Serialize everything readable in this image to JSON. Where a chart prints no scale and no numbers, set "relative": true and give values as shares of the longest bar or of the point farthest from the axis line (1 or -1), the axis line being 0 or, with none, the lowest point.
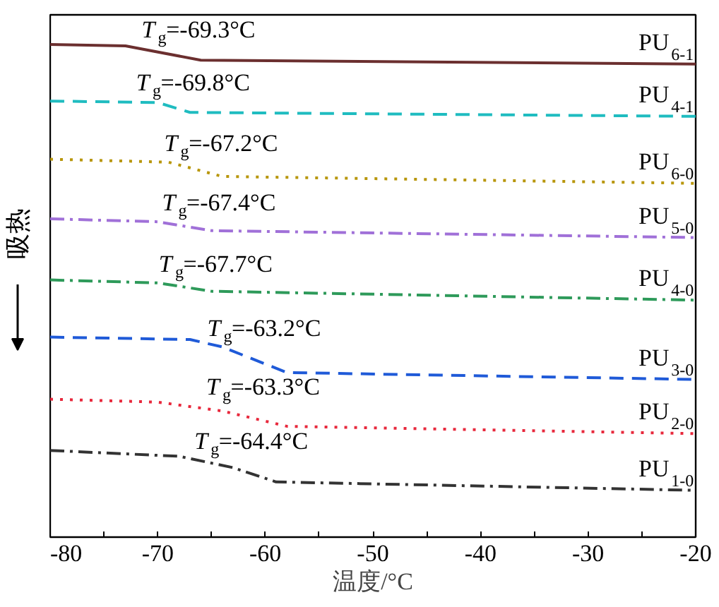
{
  "chart_data": {
    "type": "line",
    "relative": true,
    "xlabel": "温度/°C",
    "ylabel": "吸热",
    "legend": false,
    "grid": false,
    "xlim": [
      -80,
      -20
    ],
    "xticks": [
      -80,
      {
        "value": -75,
        "label": null
      },
      -70,
      {
        "value": -65,
        "label": null
      },
      -60,
      {
        "value": -55,
        "label": null
      },
      -50,
      {
        "value": -45,
        "label": null
      },
      -40,
      {
        "value": -35,
        "label": null
      },
      -30,
      {
        "value": -25,
        "label": null
      },
      -20
    ],
    "series": [
      {
        "name": "PU$_{6-1}$",
        "color": "#6b2f2f",
        "line_style": "solid",
        "x": [
          -80,
          -73,
          -66,
          -20
        ],
        "values": [
          1.0,
          0.997,
          0.968,
          0.96
        ]
      },
      {
        "name": "PU$_{4-1}$",
        "color": "#1fbcc0",
        "line_style": "dashed",
        "x": [
          -80,
          -70,
          -67,
          -20
        ],
        "values": [
          0.885,
          0.882,
          0.862,
          0.854
        ]
      },
      {
        "name": "PU$_{6-0}$",
        "color": "#b8960a",
        "line_style": "dotted",
        "x": [
          -80,
          -69,
          -64,
          -20
        ],
        "values": [
          0.767,
          0.761,
          0.732,
          0.718
        ]
      },
      {
        "name": "PU$_{5-0}$",
        "color": "#a070d8",
        "line_style": "dashdot",
        "x": [
          -80,
          -70,
          -65,
          -20
        ],
        "values": [
          0.646,
          0.64,
          0.622,
          0.608
        ]
      },
      {
        "name": "PU$_{4-0}$",
        "color": "#2e9a5a",
        "line_style": "dashdot",
        "x": [
          -80,
          -70,
          -65,
          -20
        ],
        "values": [
          0.522,
          0.516,
          0.499,
          0.481
        ]
      },
      {
        "name": "PU$_{3-0}$",
        "color": "#1f5ad8",
        "line_style": "dashed",
        "x": [
          -80,
          -67,
          -64,
          -58,
          -20
        ],
        "values": [
          0.406,
          0.401,
          0.386,
          0.334,
          0.32
        ]
      },
      {
        "name": "PU$_{2-0}$",
        "color": "#e8283c",
        "line_style": "dotted",
        "x": [
          -80,
          -70,
          -64,
          -58,
          -20
        ],
        "values": [
          0.28,
          0.274,
          0.256,
          0.225,
          0.21
        ]
      },
      {
        "name": "PU$_{1-0}$",
        "color": "#333333",
        "line_style": "dashdot",
        "x": [
          -80,
          -68,
          -63,
          -59,
          -20
        ],
        "values": [
          0.176,
          0.164,
          0.141,
          0.112,
          0.095
        ]
      }
    ],
    "annotations": [
      {
        "text": "T$_{g}$=-69.3°C",
        "x": -69.3,
        "y": 0.985
      },
      {
        "text": "T$_{g}$=-69.8°C",
        "x": -69.8,
        "y": 0.878
      },
      {
        "text": "T$_{g}$=-67.2°C",
        "x": -67.2,
        "y": 0.755
      },
      {
        "text": "T$_{g}$=-67.4°C",
        "x": -67.4,
        "y": 0.634
      },
      {
        "text": "T$_{g}$=-67.7°C",
        "x": -67.7,
        "y": 0.51
      },
      {
        "text": "T$_{g}$=-63.2°C",
        "x": -63.2,
        "y": 0.38
      },
      {
        "text": "T$_{g}$=-63.3°C",
        "x": -63.3,
        "y": 0.26
      },
      {
        "text": "T$_{g}$=-64.4°C",
        "x": -64.4,
        "y": 0.15
      }
    ]
  }
}
